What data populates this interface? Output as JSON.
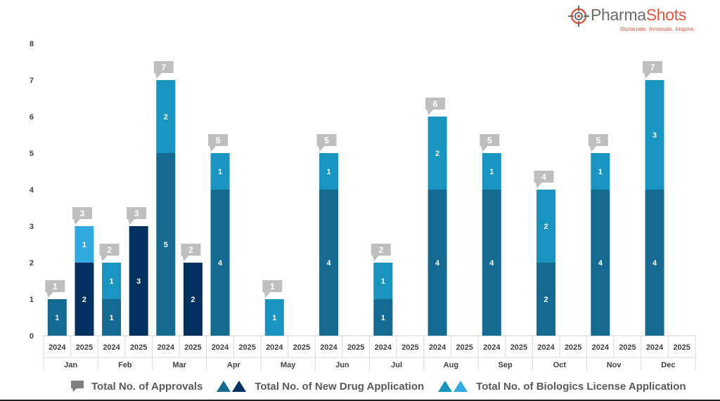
{
  "logo": {
    "name_a": "Pharma",
    "name_b": "Shots",
    "tagline": "Illuminate. Innovate. Inspire."
  },
  "colors": {
    "nda_2024": "#146a91",
    "nda_2025": "#02305f",
    "bla_2024": "#1993c0",
    "bla_2025": "#31a8e0",
    "callout": "#bfbfbf"
  },
  "legend": {
    "approvals": "Total No. of Approvals",
    "nda": "Total No. of New Drug Application",
    "bla": "Total No. of Biologics License Application"
  },
  "chart_data": {
    "type": "bar",
    "stacked": true,
    "ylim": [
      0,
      8
    ],
    "yticks": [
      0,
      1,
      2,
      3,
      4,
      5,
      6,
      7,
      8
    ],
    "grid": false,
    "legend_position": "bottom",
    "months": [
      "Jan",
      "Feb",
      "Mar",
      "Apr",
      "May",
      "Jun",
      "Jul",
      "Aug",
      "Sep",
      "Oct",
      "Nov",
      "Dec"
    ],
    "years": [
      "2024",
      "2025"
    ],
    "series": [
      {
        "name": "Total No. of New Drug Application",
        "values": [
          [
            1,
            2
          ],
          [
            1,
            3
          ],
          [
            5,
            2
          ],
          [
            4,
            0
          ],
          [
            0,
            0
          ],
          [
            4,
            0
          ],
          [
            1,
            0
          ],
          [
            4,
            0
          ],
          [
            4,
            0
          ],
          [
            2,
            0
          ],
          [
            4,
            0
          ],
          [
            4,
            0
          ]
        ]
      },
      {
        "name": "Total No. of Biologics License Application",
        "values": [
          [
            0,
            1
          ],
          [
            1,
            0
          ],
          [
            2,
            0
          ],
          [
            1,
            0
          ],
          [
            1,
            0
          ],
          [
            1,
            0
          ],
          [
            1,
            0
          ],
          [
            2,
            0
          ],
          [
            1,
            0
          ],
          [
            2,
            0
          ],
          [
            1,
            0
          ],
          [
            3,
            0
          ]
        ]
      }
    ],
    "totals_name": "Total No. of Approvals",
    "totals": [
      [
        1,
        3
      ],
      [
        2,
        3
      ],
      [
        7,
        2
      ],
      [
        5,
        0
      ],
      [
        1,
        0
      ],
      [
        5,
        0
      ],
      [
        2,
        0
      ],
      [
        6,
        0
      ],
      [
        5,
        0
      ],
      [
        4,
        0
      ],
      [
        5,
        0
      ],
      [
        7,
        0
      ]
    ]
  }
}
